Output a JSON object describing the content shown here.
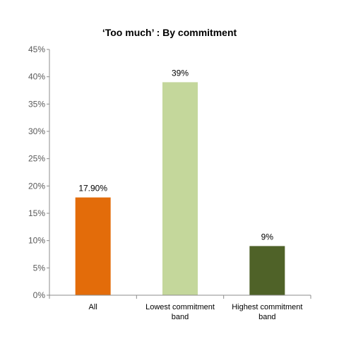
{
  "chart_data": {
    "type": "bar",
    "title": "‘Too much’ : By commitment",
    "categories": [
      [
        "All"
      ],
      [
        "Lowest commitment",
        "band"
      ],
      [
        "Highest commitment",
        "band"
      ]
    ],
    "values": [
      17.9,
      39,
      9
    ],
    "data_labels": [
      "17.90%",
      "39%",
      "9%"
    ],
    "colors": [
      "#e36c0a",
      "#c4d79b",
      "#4f6228"
    ],
    "ylim": [
      0,
      45
    ],
    "y_ticks": [
      "0%",
      "5%",
      "10%",
      "15%",
      "20%",
      "25%",
      "30%",
      "35%",
      "40%",
      "45%"
    ],
    "grid": false,
    "legend": "none",
    "xlabel": "",
    "ylabel": ""
  }
}
